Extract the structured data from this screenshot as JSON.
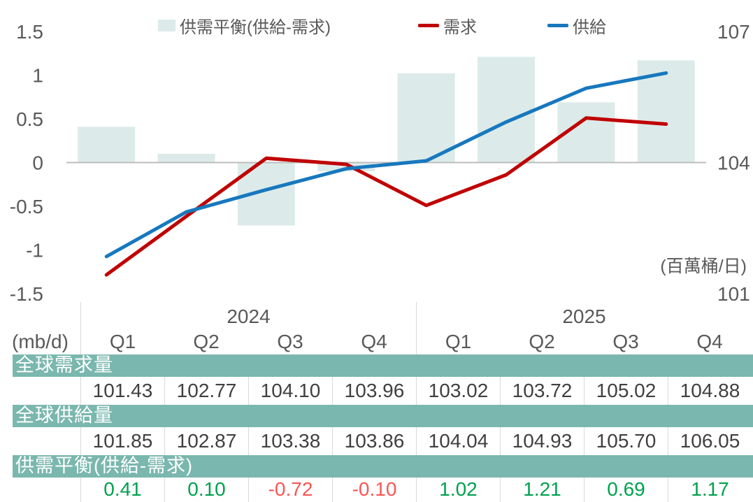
{
  "colors": {
    "bar_fill": "#dcebe9",
    "demand_line": "#c00000",
    "supply_line": "#1778be",
    "band_teal": "#7ab7ae",
    "positive_value": "#00a14e",
    "negative_value": "#fa5555",
    "axis_text": "#595959",
    "table_text": "#404040",
    "gridline": "#bdbdbd",
    "divider": "#d9d9d9"
  },
  "chart_data": {
    "type": "combo-bar-line",
    "categories": [
      "2024 Q1",
      "2024 Q2",
      "2024 Q3",
      "2024 Q4",
      "2025 Q1",
      "2025 Q2",
      "2025 Q3",
      "2025 Q4"
    ],
    "bar_series": {
      "name": "供需平衡(供給-需求)",
      "axis": "left",
      "color": "#dcebe9",
      "values": [
        0.41,
        0.1,
        -0.72,
        -0.1,
        1.02,
        1.21,
        0.69,
        1.17
      ]
    },
    "line_series": [
      {
        "name": "需求",
        "axis": "right",
        "color": "#c00000",
        "values": [
          101.43,
          102.77,
          104.1,
          103.96,
          103.02,
          103.72,
          105.02,
          104.88
        ]
      },
      {
        "name": "供給",
        "axis": "right",
        "color": "#1778be",
        "values": [
          101.85,
          102.87,
          103.38,
          103.86,
          104.04,
          104.93,
          105.7,
          106.05
        ]
      }
    ],
    "left_axis": {
      "min": -1.5,
      "max": 1.5,
      "ticks": [
        "1.5",
        "1",
        "0.5",
        "0",
        "-0.5",
        "-1",
        "-1.5"
      ]
    },
    "right_axis": {
      "min": 101,
      "max": 107,
      "ticks": [
        "107",
        "104",
        "101"
      ]
    },
    "unit_label": "(百萬桶/日)",
    "legend_position": "top",
    "gridlines": "zero-line-only"
  },
  "table": {
    "unit": "(mb/d)",
    "year_groups": [
      {
        "label": "2024"
      },
      {
        "label": "2025"
      }
    ],
    "quarters": [
      "Q1",
      "Q2",
      "Q3",
      "Q4",
      "Q1",
      "Q2",
      "Q3",
      "Q4"
    ],
    "rows": [
      {
        "header": "全球需求量",
        "signed": false,
        "values": [
          "101.43",
          "102.77",
          "104.10",
          "103.96",
          "103.02",
          "103.72",
          "105.02",
          "104.88"
        ]
      },
      {
        "header": "全球供給量",
        "signed": false,
        "values": [
          "101.85",
          "102.87",
          "103.38",
          "103.86",
          "104.04",
          "104.93",
          "105.70",
          "106.05"
        ]
      },
      {
        "header": "供需平衡(供給-需求)",
        "signed": true,
        "values": [
          "0.41",
          "0.10",
          "-0.72",
          "-0.10",
          "1.02",
          "1.21",
          "0.69",
          "1.17"
        ]
      }
    ]
  }
}
